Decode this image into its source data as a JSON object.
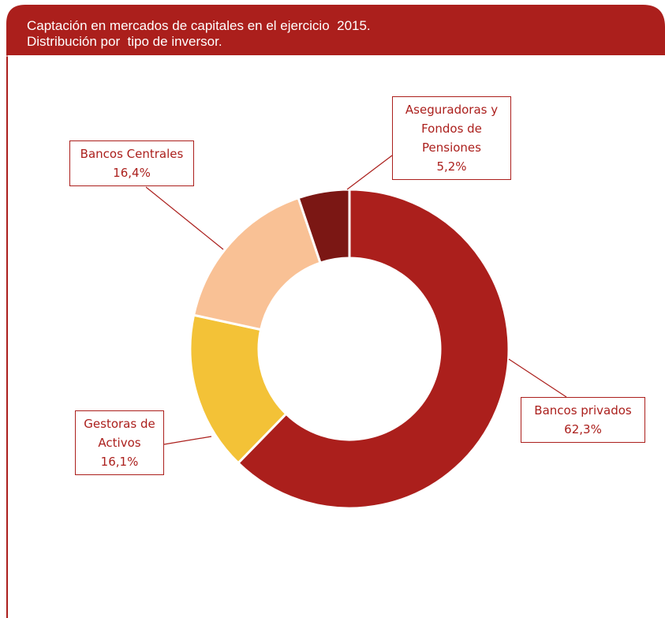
{
  "chart_data": {
    "type": "donut",
    "title": "Captación en mercados de capitales en el ejercicio  2015.",
    "subtitle": "Distribución por  tipo de inversor.",
    "categories": [
      "Bancos privados",
      "Gestoras de Activos",
      "Bancos Centrales",
      "Aseguradoras y Fondos de Pensiones"
    ],
    "values": [
      62.3,
      16.1,
      16.4,
      5.2
    ],
    "value_labels": [
      "62,3%",
      "16,1%",
      "16,4%",
      "5,2%"
    ],
    "colors": [
      "#ab1f1c",
      "#f3c237",
      "#f9c195",
      "#7b1714"
    ]
  }
}
